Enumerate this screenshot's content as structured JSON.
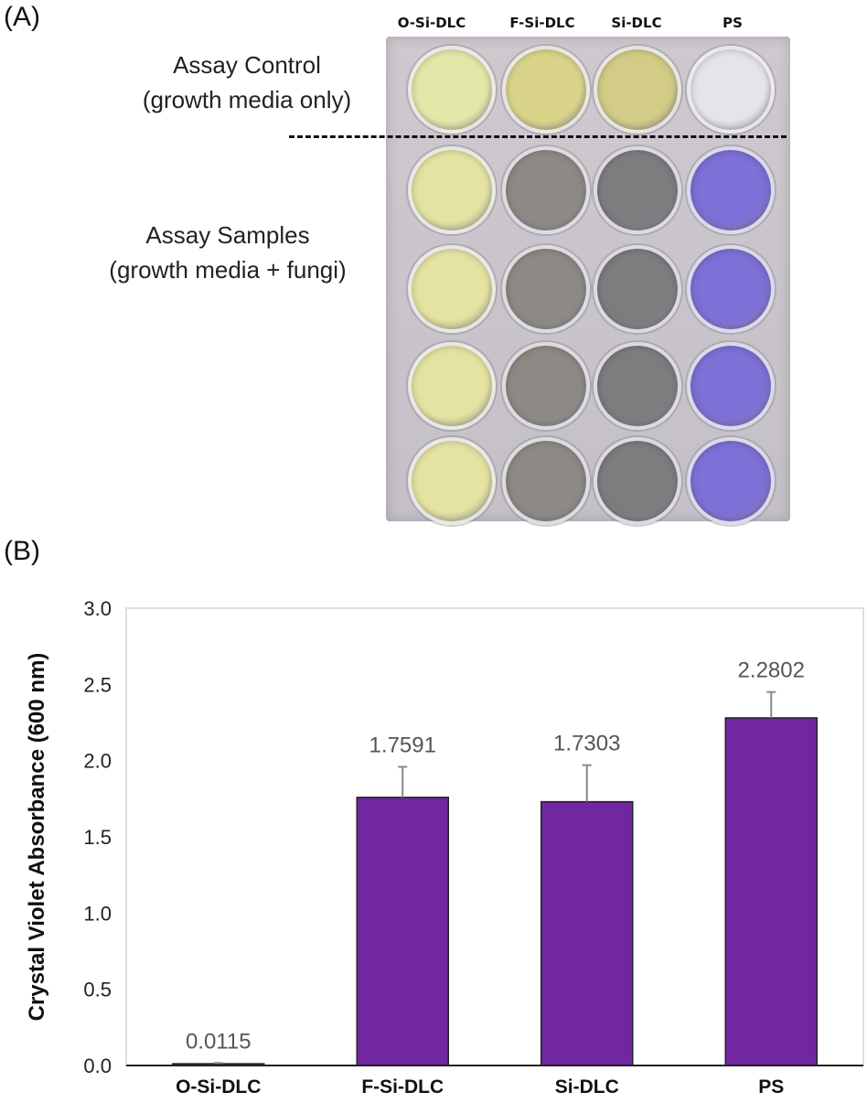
{
  "panel_a": {
    "label": "(A)",
    "columns": [
      "O-Si-DLC",
      "F-Si-DLC",
      "Si-DLC",
      "PS"
    ],
    "control_label_line1": "Assay Control",
    "control_label_line2": "(growth media only)",
    "samples_label_line1": "Assay Samples",
    "samples_label_line2": "(growth media + fungi)",
    "well_colors": {
      "control": [
        "#e2e8a8",
        "#d9d48a",
        "#d2cc86",
        "#e6e4ea"
      ],
      "sample": [
        "#e4e3a2",
        "#8d8a86",
        "#7f7c80",
        "#7d70d6"
      ]
    }
  },
  "panel_b": {
    "label": "(B)"
  },
  "chart_data": {
    "type": "bar",
    "categories": [
      "O-Si-DLC",
      "F-Si-DLC",
      "Si-DLC",
      "PS"
    ],
    "values": [
      0.0115,
      1.7591,
      1.7303,
      2.2802
    ],
    "value_labels": [
      "0.0115",
      "1.7591",
      "1.7303",
      "2.2802"
    ],
    "error": [
      0.005,
      0.2,
      0.24,
      0.17
    ],
    "ylabel": "Crystal Violet Absorbance (600 nm)",
    "ylim": [
      0,
      3.0
    ],
    "yticks": [
      "0.0",
      "0.5",
      "1.0",
      "1.5",
      "2.0",
      "2.5",
      "3.0"
    ],
    "bar_color": "#7027a0",
    "grid": false
  }
}
